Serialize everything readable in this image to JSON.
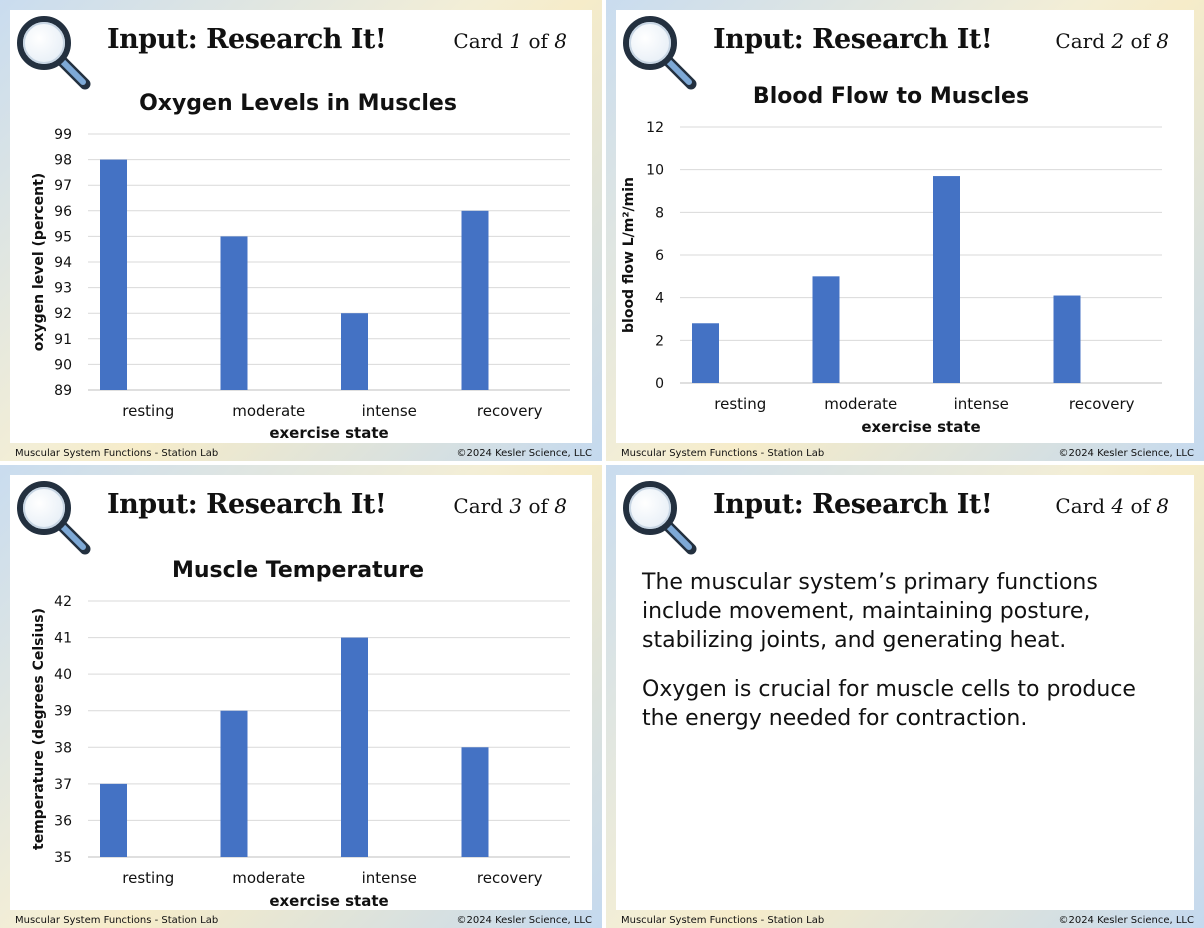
{
  "cards": [
    {
      "title": "Input: Research It!",
      "card_prefix": "Card ",
      "card_num": "1",
      "card_of": " of ",
      "card_total": "8",
      "footer_left": "Muscular System Functions - Station Lab",
      "footer_right": "©2024 Kesler Science, LLC"
    },
    {
      "title": "Input: Research It!",
      "card_prefix": "Card ",
      "card_num": "2",
      "card_of": " of ",
      "card_total": "8",
      "footer_left": "Muscular System Functions - Station Lab",
      "footer_right": "©2024 Kesler Science, LLC"
    },
    {
      "title": "Input: Research It!",
      "card_prefix": "Card ",
      "card_num": "3",
      "card_of": " of ",
      "card_total": "8",
      "footer_left": "Muscular System Functions - Station Lab",
      "footer_right": "©2024 Kesler Science, LLC"
    },
    {
      "title": "Input: Research It!",
      "card_prefix": "Card ",
      "card_num": "4",
      "card_of": " of ",
      "card_total": "8",
      "footer_left": "Muscular System Functions - Station Lab",
      "footer_right": "©2024 Kesler Science, LLC"
    }
  ],
  "info_text": {
    "p1": "The muscular system’s primary functions include movement, maintaining posture, stabilizing joints, and generating heat.",
    "p2": "Oxygen is crucial for muscle cells to produce the energy needed for contraction."
  },
  "colors": {
    "bar": "#4472c4",
    "grid": "#d9d9d9",
    "icon_ring": "#23303f",
    "icon_handle": "#7ea9d6"
  },
  "icons": [
    "magnifying-glass-icon"
  ],
  "chart_data": [
    {
      "type": "bar",
      "title": "Oxygen Levels in Muscles",
      "xlabel": "exercise state",
      "ylabel": "oxygen level (percent)",
      "categories": [
        "resting",
        "moderate",
        "intense",
        "recovery"
      ],
      "values": [
        98,
        95,
        92,
        96
      ],
      "ylim": [
        89,
        99
      ],
      "yticks": [
        89,
        90,
        91,
        92,
        93,
        94,
        95,
        96,
        97,
        98,
        99
      ],
      "grid": true,
      "legend": "none"
    },
    {
      "type": "bar",
      "title": "Blood Flow to Muscles",
      "xlabel": "exercise state",
      "ylabel": "blood flow L/m²/min",
      "categories": [
        "resting",
        "moderate",
        "intense",
        "recovery"
      ],
      "values": [
        2.8,
        5.0,
        9.7,
        4.1
      ],
      "ylim": [
        0,
        12
      ],
      "yticks": [
        0,
        2,
        4,
        6,
        8,
        10,
        12
      ],
      "grid": true,
      "legend": "none"
    },
    {
      "type": "bar",
      "title": "Muscle Temperature",
      "xlabel": "exercise state",
      "ylabel": "temperature (degrees Celsius)",
      "categories": [
        "resting",
        "moderate",
        "intense",
        "recovery"
      ],
      "values": [
        37,
        39,
        41,
        38
      ],
      "ylim": [
        35,
        42
      ],
      "yticks": [
        35,
        36,
        37,
        38,
        39,
        40,
        41,
        42
      ],
      "grid": true,
      "legend": "none"
    }
  ]
}
